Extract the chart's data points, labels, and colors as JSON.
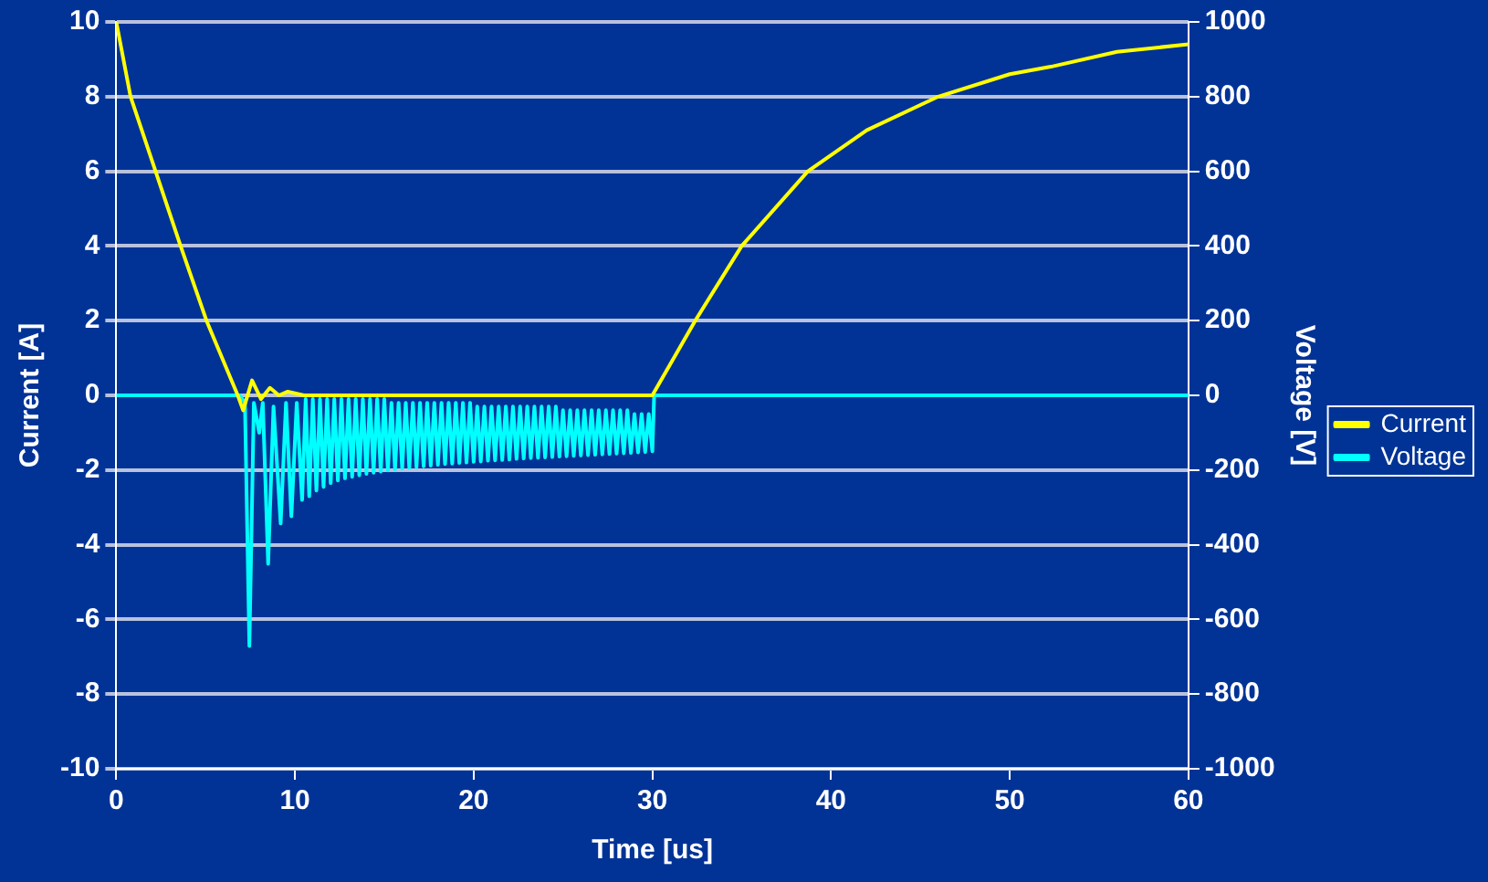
{
  "chart_data": {
    "type": "line",
    "xlabel": "Time [us]",
    "ylabel": "Current [A]",
    "y2label": "Voltage [V]",
    "xlim": [
      0,
      60
    ],
    "xticks": [
      0,
      10,
      20,
      30,
      40,
      50,
      60
    ],
    "ylim": [
      -10,
      10
    ],
    "yticks": [
      -10,
      -8,
      -6,
      -4,
      -2,
      0,
      2,
      4,
      6,
      8,
      10
    ],
    "y2lim": [
      -1000,
      1000
    ],
    "y2ticks": [
      -1000,
      -800,
      -600,
      -400,
      -200,
      0,
      200,
      400,
      600,
      800,
      1000
    ],
    "grid": "y",
    "legend": "right",
    "marker": "none",
    "line_style": "solid",
    "series": [
      {
        "name": "Current",
        "color": "#ffff00",
        "x": [
          0,
          0.8,
          2.2,
          3.6,
          5.05,
          6.8,
          7.1,
          7.6,
          8.1,
          8.6,
          9.1,
          9.6,
          10.5,
          15,
          20,
          25,
          30,
          32.4,
          35,
          38.7,
          42,
          46,
          50,
          52.3,
          56,
          60
        ],
        "values": [
          10,
          8,
          6,
          4,
          2,
          0,
          -0.4,
          0.4,
          -0.1,
          0.2,
          0,
          0.1,
          0,
          0,
          0,
          0,
          0,
          2,
          4,
          6,
          7.1,
          8,
          8.6,
          8.8,
          9.2,
          9.4
        ]
      },
      {
        "name": "Voltage",
        "color": "#00ffff",
        "axis": "y2",
        "x": [
          0,
          6.9,
          7.2,
          7.45,
          7.7,
          8.0,
          8.2,
          8.5,
          8.8,
          9.2,
          9.5,
          9.8,
          10.1,
          10.4,
          10.6,
          10.8,
          11.0,
          11.2,
          11.4,
          11.6,
          11.8,
          12.0,
          12.2,
          12.4,
          12.6,
          12.8,
          13.0,
          13.2,
          13.4,
          13.6,
          13.8,
          14.0,
          14.2,
          14.4,
          14.6,
          14.8,
          15.0,
          15.2,
          15.4,
          15.6,
          15.8,
          16.0,
          16.2,
          16.4,
          16.6,
          16.8,
          17.0,
          17.2,
          17.4,
          17.6,
          17.8,
          18.0,
          18.2,
          18.4,
          18.6,
          18.8,
          19.0,
          19.2,
          19.4,
          19.6,
          19.8,
          20.0,
          20.2,
          20.4,
          20.6,
          20.8,
          21.0,
          21.2,
          21.4,
          21.6,
          21.8,
          22.0,
          22.2,
          22.4,
          22.6,
          22.8,
          23.0,
          23.2,
          23.4,
          23.6,
          23.8,
          24.0,
          24.2,
          24.4,
          24.6,
          24.8,
          25.0,
          25.2,
          25.4,
          25.6,
          25.8,
          26.0,
          26.2,
          26.4,
          26.6,
          26.8,
          27.0,
          27.2,
          27.4,
          27.6,
          27.8,
          28.0,
          28.2,
          28.4,
          28.6,
          28.8,
          29.0,
          29.2,
          29.4,
          29.6,
          29.8,
          30.0,
          30.1,
          60
        ],
        "values": [
          0,
          0,
          -20,
          -671,
          -20,
          -100,
          -20,
          -451,
          -30,
          -343,
          -20,
          -324,
          -20,
          -280,
          -10,
          -270,
          -10,
          -255,
          -10,
          -245,
          -10,
          -235,
          -10,
          -228,
          -10,
          -222,
          -10,
          -218,
          -10,
          -214,
          -10,
          -210,
          -10,
          -207,
          -10,
          -204,
          -10,
          -201,
          -20,
          -198,
          -20,
          -196,
          -20,
          -194,
          -20,
          -192,
          -20,
          -190,
          -20,
          -188,
          -20,
          -186,
          -20,
          -184,
          -20,
          -183,
          -20,
          -181,
          -20,
          -180,
          -20,
          -178,
          -30,
          -177,
          -30,
          -175,
          -30,
          -174,
          -30,
          -173,
          -30,
          -172,
          -30,
          -170,
          -30,
          -169,
          -30,
          -168,
          -30,
          -167,
          -30,
          -166,
          -30,
          -165,
          -30,
          -164,
          -40,
          -163,
          -40,
          -162,
          -40,
          -161,
          -40,
          -160,
          -40,
          -159,
          -40,
          -158,
          -40,
          -157,
          -40,
          -156,
          -40,
          -155,
          -40,
          -154,
          -50,
          -153,
          -50,
          -152,
          -50,
          -150,
          0,
          0
        ]
      }
    ]
  }
}
